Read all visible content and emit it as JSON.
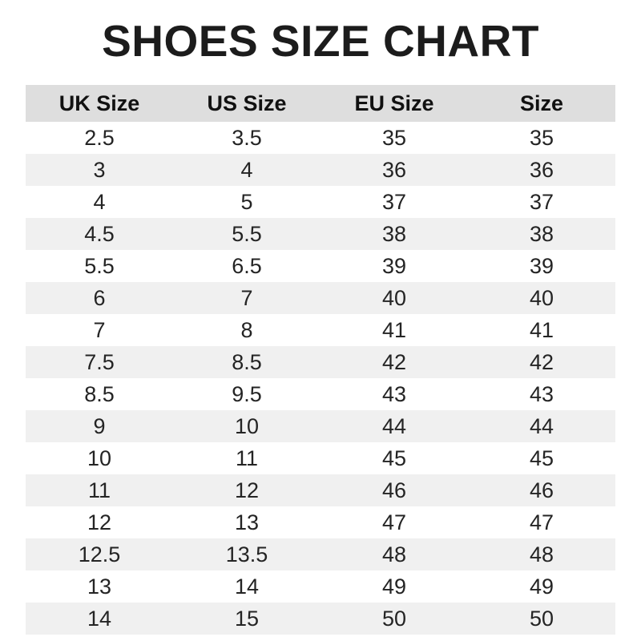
{
  "title": "SHOES SIZE CHART",
  "chart_data": {
    "type": "table",
    "title": "SHOES SIZE CHART",
    "columns": [
      "UK Size",
      "US Size",
      "EU Size",
      "Size"
    ],
    "rows": [
      [
        "2.5",
        "3.5",
        "35",
        "35"
      ],
      [
        "3",
        "4",
        "36",
        "36"
      ],
      [
        "4",
        "5",
        "37",
        "37"
      ],
      [
        "4.5",
        "5.5",
        "38",
        "38"
      ],
      [
        "5.5",
        "6.5",
        "39",
        "39"
      ],
      [
        "6",
        "7",
        "40",
        "40"
      ],
      [
        "7",
        "8",
        "41",
        "41"
      ],
      [
        "7.5",
        "8.5",
        "42",
        "42"
      ],
      [
        "8.5",
        "9.5",
        "43",
        "43"
      ],
      [
        "9",
        "10",
        "44",
        "44"
      ],
      [
        "10",
        "11",
        "45",
        "45"
      ],
      [
        "11",
        "12",
        "46",
        "46"
      ],
      [
        "12",
        "13",
        "47",
        "47"
      ],
      [
        "12.5",
        "13.5",
        "48",
        "48"
      ],
      [
        "13",
        "14",
        "49",
        "49"
      ],
      [
        "14",
        "15",
        "50",
        "50"
      ]
    ],
    "layout": {
      "striped_rows": true,
      "first_data_row_background": "white",
      "header_background": "gray"
    }
  },
  "colors": {
    "page_bg": "#ffffff",
    "title_color": "#1c1c1c",
    "header_bg": "#dedede",
    "header_text": "#111111",
    "row_bg": "#ffffff",
    "row_alt_bg": "#f0f0f0",
    "cell_text": "#242424"
  }
}
